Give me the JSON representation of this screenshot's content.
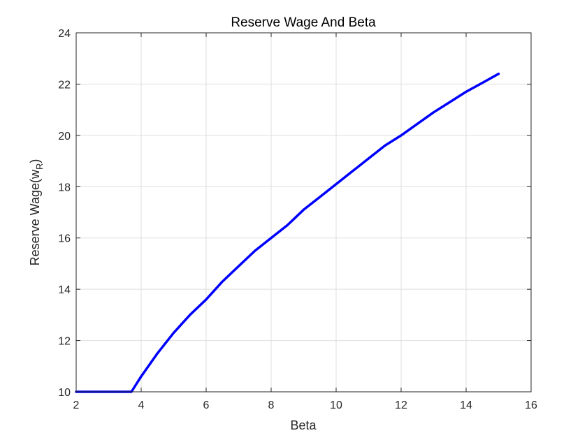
{
  "chart_data": {
    "type": "line",
    "title": "Reserve Wage And Beta",
    "xlabel": "Beta",
    "ylabel_main": "Reserve Wage(w",
    "ylabel_sub": "R",
    "ylabel_close": ")",
    "xlim": [
      2,
      16
    ],
    "ylim": [
      10,
      24
    ],
    "xticks": [
      2,
      4,
      6,
      8,
      10,
      12,
      14,
      16
    ],
    "yticks": [
      10,
      12,
      14,
      16,
      18,
      20,
      22,
      24
    ],
    "grid": true,
    "series": [
      {
        "color": "#0000ff",
        "x": [
          2.0,
          2.5,
          3.0,
          3.5,
          3.7,
          3.85,
          4.0,
          4.5,
          5.0,
          5.5,
          6.0,
          6.5,
          7.0,
          7.5,
          8.0,
          8.5,
          9.0,
          9.5,
          10.0,
          10.5,
          11.0,
          11.5,
          12.0,
          12.5,
          13.0,
          13.5,
          14.0,
          14.5,
          15.0
        ],
        "y": [
          10.0,
          10.0,
          10.0,
          10.0,
          10.0,
          10.3,
          10.6,
          11.5,
          12.3,
          13.0,
          13.6,
          14.3,
          14.9,
          15.5,
          16.0,
          16.5,
          17.1,
          17.6,
          18.1,
          18.6,
          19.1,
          19.6,
          20.0,
          20.45,
          20.9,
          21.3,
          21.7,
          22.05,
          22.4
        ]
      }
    ]
  }
}
